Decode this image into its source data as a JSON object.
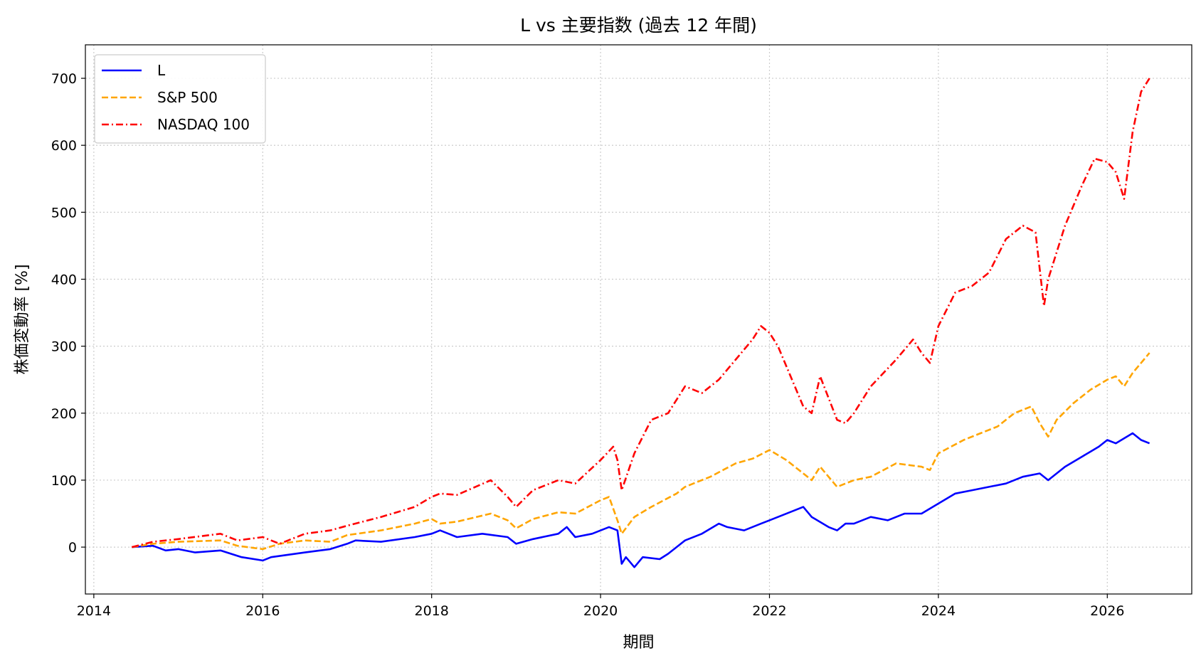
{
  "chart_data": {
    "type": "line",
    "title": "L vs 主要指数 (過去 12 年間)",
    "xlabel": "期間",
    "ylabel": "株価変動率 [%]",
    "xlim": [
      2013.9,
      2027.0
    ],
    "ylim": [
      -70,
      750
    ],
    "xticks": [
      2014,
      2016,
      2018,
      2020,
      2022,
      2024,
      2026
    ],
    "yticks": [
      0,
      100,
      200,
      300,
      400,
      500,
      600,
      700
    ],
    "grid": true,
    "legend_position": "top-left",
    "series": [
      {
        "name": "L",
        "color": "#0000ff",
        "dash": "solid",
        "points": [
          [
            2014.45,
            0
          ],
          [
            2014.7,
            2
          ],
          [
            2014.85,
            -5
          ],
          [
            2015.0,
            -3
          ],
          [
            2015.2,
            -8
          ],
          [
            2015.5,
            -5
          ],
          [
            2015.75,
            -15
          ],
          [
            2016.0,
            -20
          ],
          [
            2016.1,
            -15
          ],
          [
            2016.5,
            -8
          ],
          [
            2016.8,
            -3
          ],
          [
            2017.0,
            5
          ],
          [
            2017.1,
            10
          ],
          [
            2017.4,
            8
          ],
          [
            2017.8,
            15
          ],
          [
            2018.0,
            20
          ],
          [
            2018.1,
            25
          ],
          [
            2018.3,
            15
          ],
          [
            2018.6,
            20
          ],
          [
            2018.9,
            15
          ],
          [
            2019.0,
            5
          ],
          [
            2019.2,
            12
          ],
          [
            2019.5,
            20
          ],
          [
            2019.6,
            30
          ],
          [
            2019.7,
            15
          ],
          [
            2019.9,
            20
          ],
          [
            2020.1,
            30
          ],
          [
            2020.2,
            25
          ],
          [
            2020.25,
            -25
          ],
          [
            2020.3,
            -15
          ],
          [
            2020.4,
            -30
          ],
          [
            2020.5,
            -15
          ],
          [
            2020.7,
            -18
          ],
          [
            2020.8,
            -10
          ],
          [
            2020.9,
            0
          ],
          [
            2021.0,
            10
          ],
          [
            2021.2,
            20
          ],
          [
            2021.4,
            35
          ],
          [
            2021.5,
            30
          ],
          [
            2021.7,
            25
          ],
          [
            2021.9,
            35
          ],
          [
            2022.0,
            40
          ],
          [
            2022.3,
            55
          ],
          [
            2022.4,
            60
          ],
          [
            2022.5,
            45
          ],
          [
            2022.7,
            30
          ],
          [
            2022.8,
            25
          ],
          [
            2022.9,
            35
          ],
          [
            2023.0,
            35
          ],
          [
            2023.2,
            45
          ],
          [
            2023.4,
            40
          ],
          [
            2023.6,
            50
          ],
          [
            2023.8,
            50
          ],
          [
            2024.0,
            65
          ],
          [
            2024.2,
            80
          ],
          [
            2024.4,
            85
          ],
          [
            2024.6,
            90
          ],
          [
            2024.8,
            95
          ],
          [
            2025.0,
            105
          ],
          [
            2025.2,
            110
          ],
          [
            2025.3,
            100
          ],
          [
            2025.5,
            120
          ],
          [
            2025.7,
            135
          ],
          [
            2025.9,
            150
          ],
          [
            2026.0,
            160
          ],
          [
            2026.1,
            155
          ],
          [
            2026.3,
            170
          ],
          [
            2026.4,
            160
          ],
          [
            2026.5,
            155
          ]
        ]
      },
      {
        "name": "S&P 500",
        "color": "#ffa500",
        "dash": "dashed",
        "points": [
          [
            2014.45,
            0
          ],
          [
            2014.7,
            5
          ],
          [
            2015.0,
            8
          ],
          [
            2015.5,
            10
          ],
          [
            2015.7,
            2
          ],
          [
            2016.0,
            -3
          ],
          [
            2016.2,
            5
          ],
          [
            2016.5,
            10
          ],
          [
            2016.8,
            8
          ],
          [
            2017.0,
            18
          ],
          [
            2017.4,
            25
          ],
          [
            2017.8,
            35
          ],
          [
            2018.0,
            42
          ],
          [
            2018.1,
            35
          ],
          [
            2018.3,
            38
          ],
          [
            2018.7,
            50
          ],
          [
            2018.9,
            40
          ],
          [
            2019.0,
            28
          ],
          [
            2019.2,
            42
          ],
          [
            2019.5,
            52
          ],
          [
            2019.7,
            50
          ],
          [
            2020.0,
            70
          ],
          [
            2020.1,
            75
          ],
          [
            2020.2,
            40
          ],
          [
            2020.25,
            20
          ],
          [
            2020.4,
            45
          ],
          [
            2020.6,
            60
          ],
          [
            2020.9,
            80
          ],
          [
            2021.0,
            90
          ],
          [
            2021.3,
            105
          ],
          [
            2021.6,
            125
          ],
          [
            2021.8,
            132
          ],
          [
            2022.0,
            145
          ],
          [
            2022.2,
            130
          ],
          [
            2022.4,
            110
          ],
          [
            2022.5,
            100
          ],
          [
            2022.6,
            120
          ],
          [
            2022.8,
            90
          ],
          [
            2023.0,
            100
          ],
          [
            2023.2,
            105
          ],
          [
            2023.5,
            125
          ],
          [
            2023.8,
            120
          ],
          [
            2023.9,
            115
          ],
          [
            2024.0,
            140
          ],
          [
            2024.3,
            160
          ],
          [
            2024.5,
            170
          ],
          [
            2024.7,
            180
          ],
          [
            2024.9,
            200
          ],
          [
            2025.1,
            210
          ],
          [
            2025.2,
            185
          ],
          [
            2025.3,
            165
          ],
          [
            2025.4,
            190
          ],
          [
            2025.6,
            215
          ],
          [
            2025.8,
            235
          ],
          [
            2026.0,
            250
          ],
          [
            2026.1,
            255
          ],
          [
            2026.2,
            240
          ],
          [
            2026.3,
            260
          ],
          [
            2026.4,
            275
          ],
          [
            2026.5,
            290
          ]
        ]
      },
      {
        "name": "NASDAQ 100",
        "color": "#ff0000",
        "dash": "dashdot",
        "points": [
          [
            2014.45,
            0
          ],
          [
            2014.7,
            8
          ],
          [
            2015.0,
            12
          ],
          [
            2015.5,
            20
          ],
          [
            2015.7,
            10
          ],
          [
            2016.0,
            15
          ],
          [
            2016.2,
            5
          ],
          [
            2016.5,
            20
          ],
          [
            2016.8,
            25
          ],
          [
            2017.0,
            32
          ],
          [
            2017.4,
            45
          ],
          [
            2017.8,
            60
          ],
          [
            2018.0,
            75
          ],
          [
            2018.1,
            80
          ],
          [
            2018.3,
            78
          ],
          [
            2018.7,
            100
          ],
          [
            2018.9,
            75
          ],
          [
            2019.0,
            60
          ],
          [
            2019.2,
            85
          ],
          [
            2019.5,
            100
          ],
          [
            2019.7,
            95
          ],
          [
            2020.0,
            130
          ],
          [
            2020.15,
            150
          ],
          [
            2020.2,
            130
          ],
          [
            2020.25,
            85
          ],
          [
            2020.4,
            140
          ],
          [
            2020.6,
            190
          ],
          [
            2020.8,
            200
          ],
          [
            2021.0,
            240
          ],
          [
            2021.2,
            230
          ],
          [
            2021.4,
            250
          ],
          [
            2021.6,
            280
          ],
          [
            2021.8,
            310
          ],
          [
            2021.9,
            330
          ],
          [
            2022.0,
            320
          ],
          [
            2022.1,
            300
          ],
          [
            2022.3,
            240
          ],
          [
            2022.4,
            210
          ],
          [
            2022.5,
            200
          ],
          [
            2022.6,
            255
          ],
          [
            2022.8,
            190
          ],
          [
            2022.9,
            185
          ],
          [
            2023.0,
            200
          ],
          [
            2023.2,
            240
          ],
          [
            2023.5,
            280
          ],
          [
            2023.7,
            310
          ],
          [
            2023.8,
            290
          ],
          [
            2023.9,
            275
          ],
          [
            2024.0,
            330
          ],
          [
            2024.2,
            380
          ],
          [
            2024.4,
            390
          ],
          [
            2024.6,
            410
          ],
          [
            2024.8,
            460
          ],
          [
            2025.0,
            480
          ],
          [
            2025.15,
            470
          ],
          [
            2025.25,
            360
          ],
          [
            2025.3,
            400
          ],
          [
            2025.5,
            480
          ],
          [
            2025.7,
            540
          ],
          [
            2025.85,
            580
          ],
          [
            2026.0,
            575
          ],
          [
            2026.1,
            560
          ],
          [
            2026.2,
            520
          ],
          [
            2026.3,
            620
          ],
          [
            2026.4,
            680
          ],
          [
            2026.5,
            700
          ]
        ]
      }
    ]
  }
}
